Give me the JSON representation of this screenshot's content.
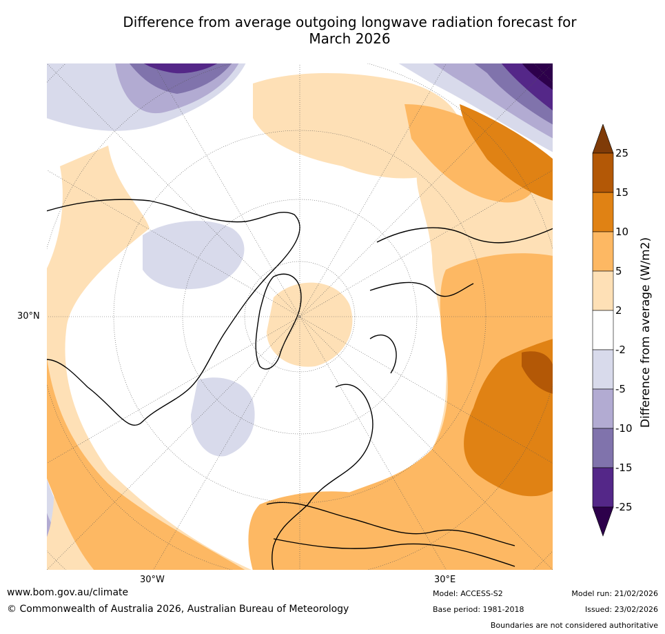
{
  "title": {
    "line1": "Difference from average outgoing longwave radiation forecast for",
    "line2": "March 2026"
  },
  "map": {
    "projection": "north-polar-stereographic",
    "lat_label": "30°N",
    "lon_labels": [
      "30°W",
      "30°E"
    ]
  },
  "legend": {
    "title": "Difference from average (W/m2)",
    "tick_labels": [
      "25",
      "15",
      "10",
      "5",
      "2",
      "-2",
      "-5",
      "-10",
      "-15",
      "-25"
    ],
    "bins": [
      {
        "range": "> 25",
        "color": "#7f3b08"
      },
      {
        "range": "15 to 25",
        "color": "#b35806"
      },
      {
        "range": "10 to 15",
        "color": "#e08214"
      },
      {
        "range": "5 to 10",
        "color": "#fdb863"
      },
      {
        "range": "2 to 5",
        "color": "#fee0b6"
      },
      {
        "range": "-2 to 2",
        "color": "#ffffff"
      },
      {
        "range": "-5 to -2",
        "color": "#d8daeb"
      },
      {
        "range": "-10 to -5",
        "color": "#b2abd2"
      },
      {
        "range": "-15 to -10",
        "color": "#8073ac"
      },
      {
        "range": "-25 to -15",
        "color": "#542788"
      },
      {
        "range": "< -25",
        "color": "#2d004b"
      }
    ]
  },
  "footer": {
    "website": "www.bom.gov.au/climate",
    "copyright": "© Commonwealth of Australia 2026, Australian Bureau of Meteorology",
    "model": "Model: ACCESS-S2",
    "base_period": "Base period: 1981-2018",
    "model_run": "Model run: 21/02/2026",
    "issued": "Issued: 23/02/2026",
    "disclaimer": "Boundaries are not considered authoritative"
  }
}
